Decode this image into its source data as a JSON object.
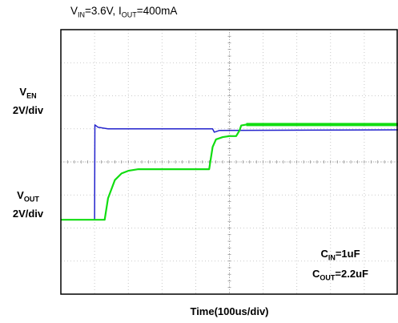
{
  "chart_data": {
    "type": "line",
    "title_parts": {
      "v_prefix": "V",
      "v_sub": "IN",
      "v_rest": "=3.6V, ",
      "i_prefix": "I",
      "i_sub": "OUT",
      "i_rest": "=400mA"
    },
    "xlabel": "Time(100us/div)",
    "divisions": {
      "x": 10,
      "y": 8
    },
    "ylabels": [
      {
        "prefix": "V",
        "sub": "EN",
        "scale": "2V/div"
      },
      {
        "prefix": "V",
        "sub": "OUT",
        "scale": "2V/div"
      }
    ],
    "inset": [
      {
        "prefix": "C",
        "sub": "IN",
        "value": "=1uF"
      },
      {
        "prefix": "C",
        "sub": "OUT",
        "value": "=2.2uF"
      }
    ],
    "colors": {
      "V_EN": "#2222cc",
      "V_OUT": "#11dd11",
      "grid": "#bbbbbb",
      "frame": "#000000"
    },
    "series": [
      {
        "id": "V_EN",
        "time_div": [
          0,
          1.0,
          1.01,
          1.1,
          1.4,
          4.5,
          4.55,
          4.7,
          10
        ],
        "level_div": [
          -1.75,
          -1.75,
          1.12,
          1.05,
          1.0,
          1.0,
          0.9,
          0.95,
          0.97
        ]
      },
      {
        "id": "V_OUT",
        "time_div": [
          0,
          1.3,
          1.4,
          1.6,
          1.8,
          2.0,
          2.3,
          4.4,
          4.5,
          4.6,
          4.8,
          5.0,
          5.2,
          5.3,
          5.35,
          5.5,
          10
        ],
        "level_div": [
          -1.75,
          -1.75,
          -1.1,
          -0.55,
          -0.35,
          -0.27,
          -0.22,
          -0.22,
          0.45,
          0.68,
          0.75,
          0.78,
          0.78,
          0.95,
          1.1,
          1.13,
          1.13
        ]
      }
    ]
  }
}
